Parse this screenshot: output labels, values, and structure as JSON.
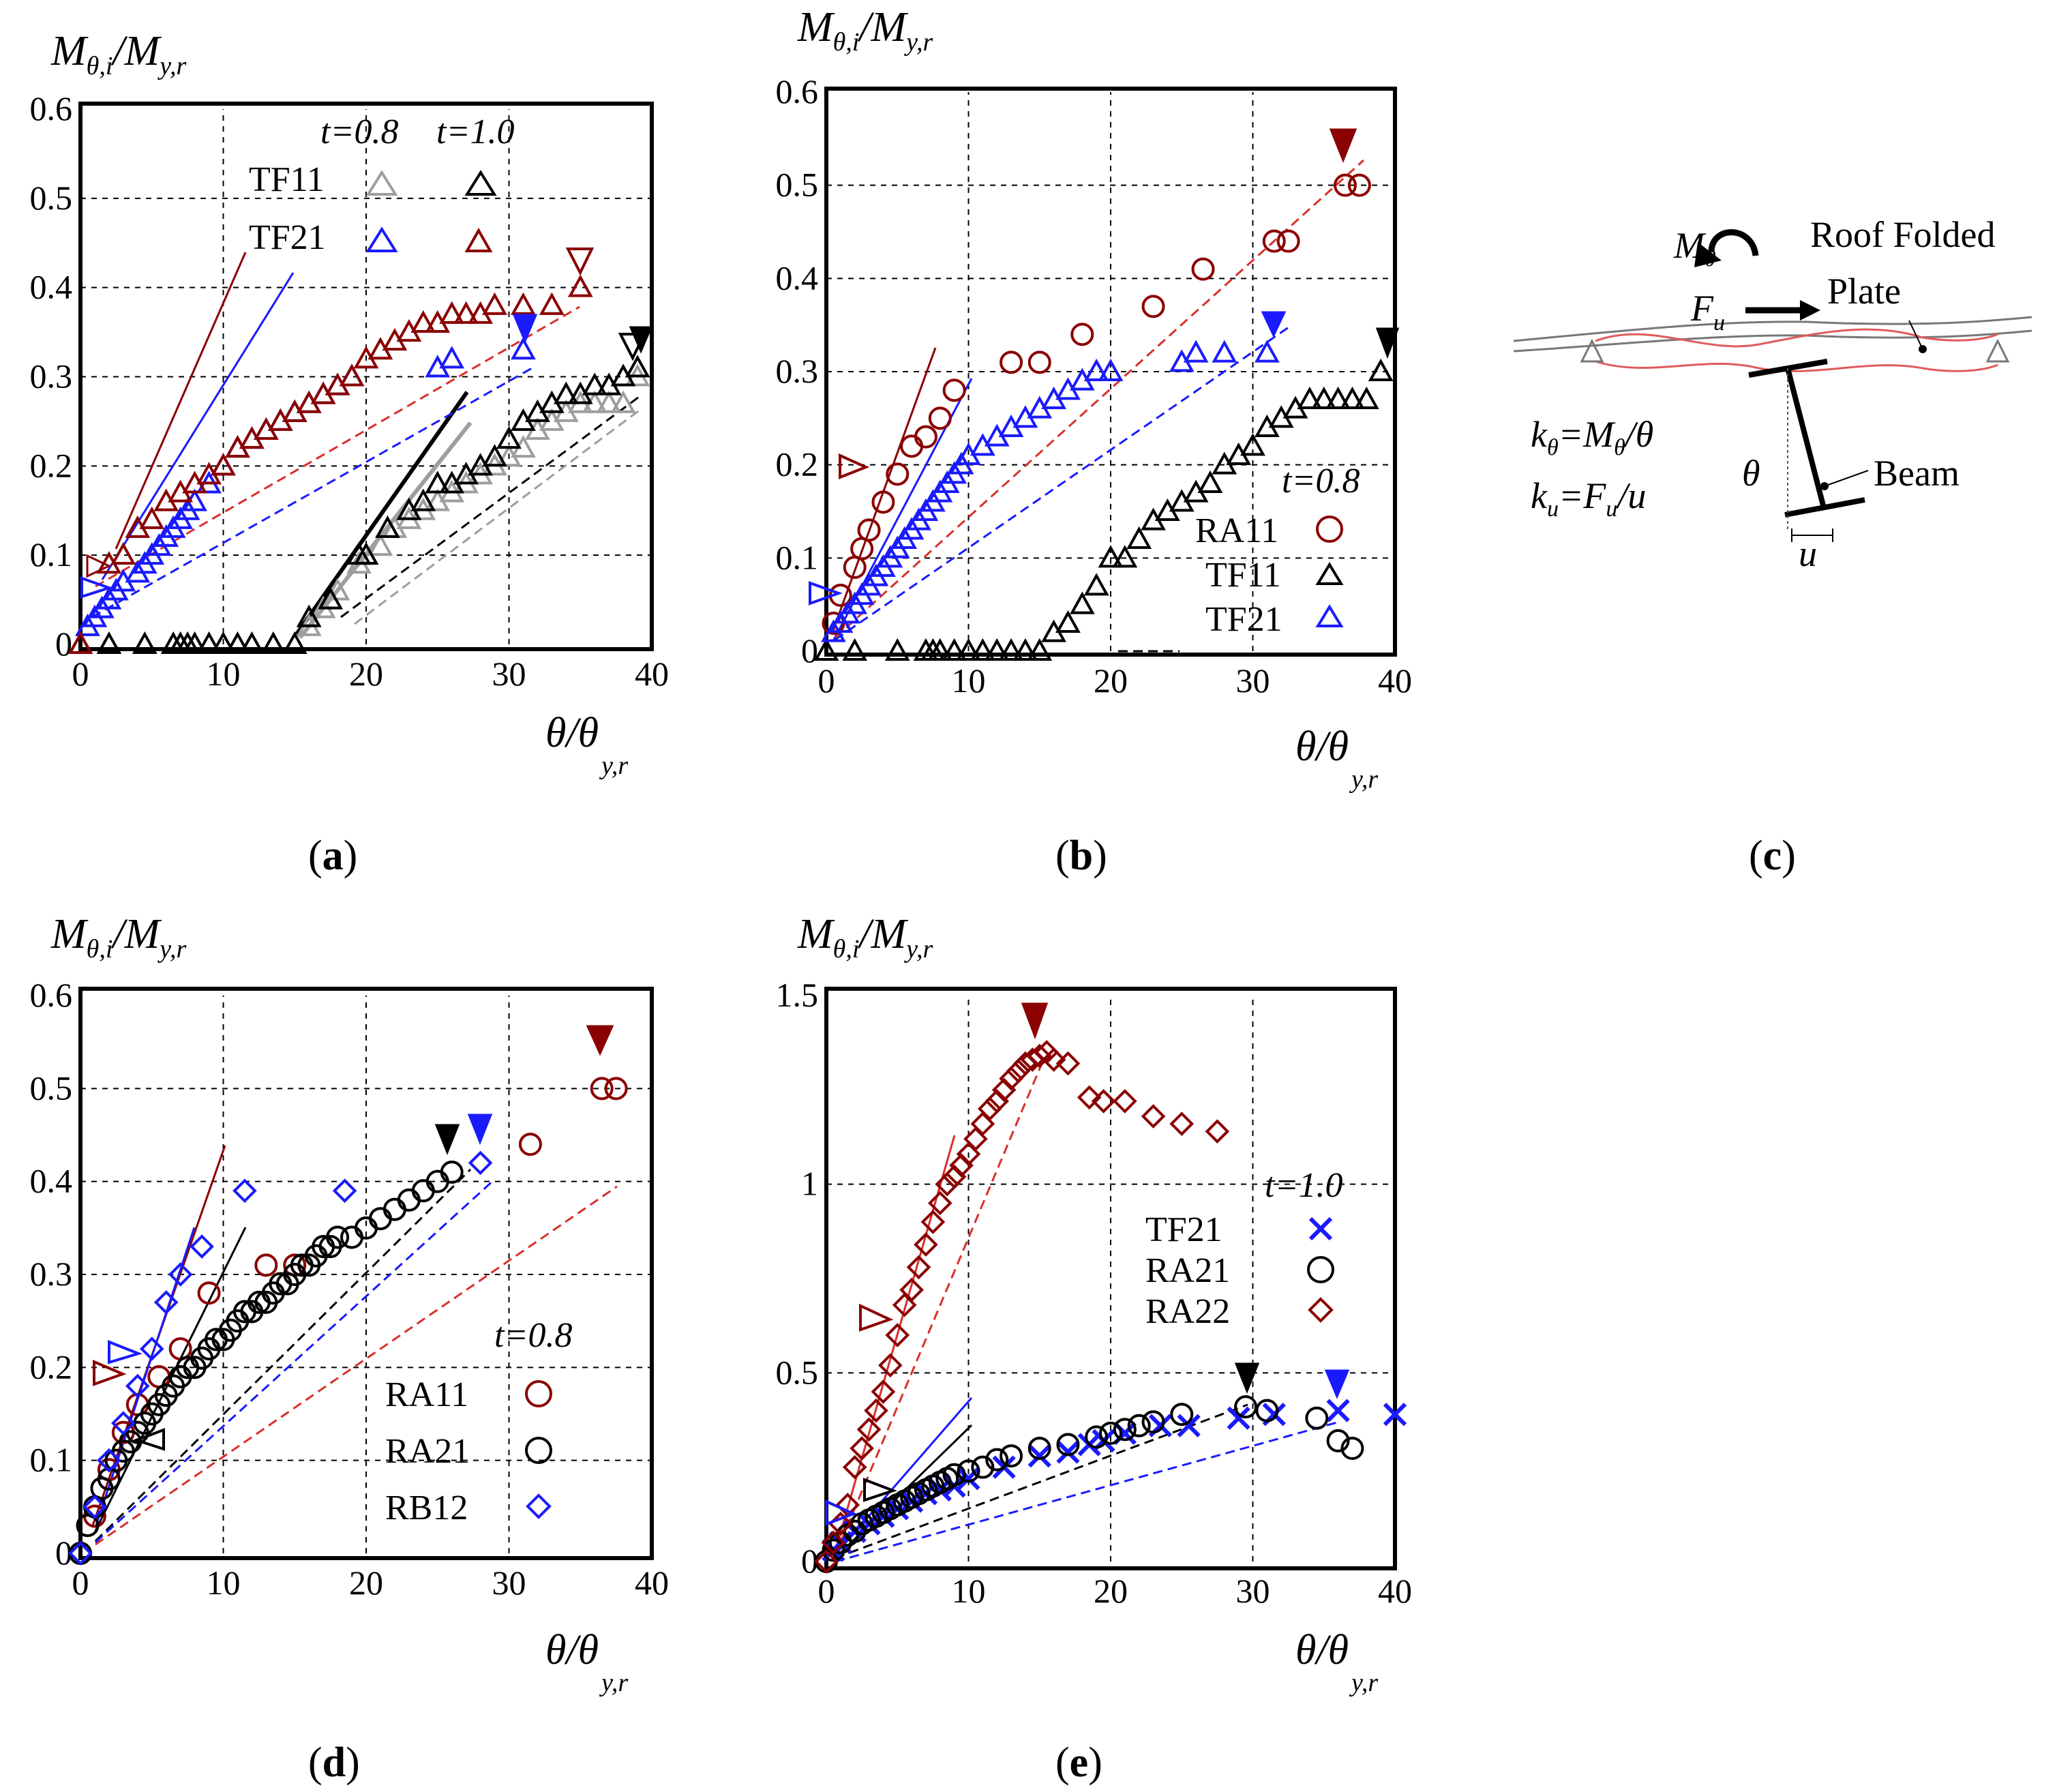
{
  "colors": {
    "gray": "#9e9e9e",
    "black": "#000000",
    "blue": "#1a1aff",
    "red": "#8b0000",
    "red2": "#d9302b"
  },
  "y_label": {
    "main": "M",
    "sub1": "θ,i",
    "slash": "/M",
    "sub2": "y,r"
  },
  "x_label": {
    "main": "θ/θ",
    "sub": "y,r"
  },
  "captions": {
    "a": "a",
    "b": "b",
    "c": "c",
    "d": "d",
    "e": "e"
  },
  "diagram": {
    "moment": "M",
    "moment_sub": "θ",
    "force": "F",
    "force_sub": "u",
    "roof": "Roof Folded",
    "plate": "Plate",
    "beam": "Beam",
    "theta": "θ",
    "u": "u",
    "eq1_k": "k",
    "eq1_ksub": "θ",
    "eq1_rest": "=M",
    "eq1_msub": "θ",
    "eq1_end": "/θ",
    "eq2_k": "k",
    "eq2_ksub": "u",
    "eq2_rest": "=F",
    "eq2_fsub": "u",
    "eq2_end": "/u"
  },
  "chart_data": [
    {
      "id": "a",
      "type": "scatter",
      "xlim": [
        0,
        40
      ],
      "ylim": [
        0,
        0.6
      ],
      "xticks": [
        "0",
        "10",
        "20",
        "30",
        "40"
      ],
      "yticks": [
        "0",
        "0.1",
        "0.2",
        "0.3",
        "0.4",
        "0.5",
        "0.6"
      ],
      "legend_header": {
        "t1": "t",
        "v1": "=0.8",
        "t2": "t",
        "v2": "=1.0"
      },
      "legend": [
        {
          "label": "TF11"
        },
        {
          "label": "TF21"
        }
      ],
      "series": [
        {
          "name": "TF11 t=0.8",
          "marker": "triangle",
          "color": "gray",
          "x": [
            16,
            17,
            18,
            19.5,
            20,
            21,
            22,
            23,
            24,
            25,
            26,
            27,
            28,
            29,
            30,
            31,
            32,
            33,
            34,
            35,
            36,
            37,
            38,
            39
          ],
          "y": [
            0.02,
            0.04,
            0.06,
            0.09,
            0.1,
            0.11,
            0.13,
            0.14,
            0.15,
            0.16,
            0.17,
            0.18,
            0.19,
            0.2,
            0.21,
            0.22,
            0.24,
            0.25,
            0.26,
            0.27,
            0.27,
            0.27,
            0.27,
            0.3
          ]
        },
        {
          "name": "TF11 t=1.0",
          "marker": "triangle",
          "color": "black",
          "x": [
            0,
            2,
            4.5,
            6.5,
            7,
            7.5,
            8,
            9,
            10,
            11,
            12,
            13.5,
            15,
            16,
            17.5,
            19.5,
            20,
            21.5,
            23,
            24,
            25,
            26,
            27,
            28,
            29,
            30,
            31,
            32,
            33,
            34,
            35,
            36,
            37,
            38,
            39
          ],
          "y": [
            0,
            0,
            0,
            0,
            0,
            0,
            0,
            0,
            0,
            0,
            0,
            0,
            0,
            0.03,
            0.05,
            0.1,
            0.1,
            0.13,
            0.15,
            0.16,
            0.18,
            0.18,
            0.19,
            0.2,
            0.21,
            0.23,
            0.25,
            0.26,
            0.27,
            0.28,
            0.28,
            0.29,
            0.29,
            0.3,
            0.31
          ]
        },
        {
          "name": "TF21 t=0.8",
          "marker": "triangle",
          "color": "blue",
          "x": [
            0.5,
            1,
            1.5,
            2,
            2.5,
            3,
            4,
            4.5,
            5,
            5.5,
            6,
            6.5,
            7,
            7.5,
            8,
            9,
            10,
            11,
            12,
            13,
            14,
            15,
            16,
            17,
            18,
            19,
            25,
            26,
            31
          ],
          "y": [
            0.02,
            0.03,
            0.04,
            0.05,
            0.06,
            0.07,
            0.08,
            0.09,
            0.1,
            0.11,
            0.12,
            0.13,
            0.14,
            0.15,
            0.16,
            0.18,
            0.2,
            0.22,
            0.23,
            0.24,
            0.25,
            0.26,
            0.27,
            0.28,
            0.29,
            0.3,
            0.31,
            0.32,
            0.33
          ]
        },
        {
          "name": "TF21 t=1.0",
          "marker": "triangle",
          "color": "red",
          "x": [
            0,
            2,
            3,
            4,
            5,
            6,
            7,
            8,
            9,
            10,
            11,
            12,
            13,
            14,
            15,
            16,
            17,
            18,
            19,
            20,
            21,
            22,
            23,
            24,
            25,
            26,
            27,
            28,
            29,
            31,
            33,
            35
          ],
          "y": [
            0,
            0.09,
            0.1,
            0.13,
            0.14,
            0.16,
            0.17,
            0.18,
            0.19,
            0.2,
            0.22,
            0.23,
            0.24,
            0.25,
            0.26,
            0.27,
            0.28,
            0.29,
            0.3,
            0.32,
            0.33,
            0.34,
            0.35,
            0.36,
            0.36,
            0.37,
            0.37,
            0.37,
            0.38,
            0.38,
            0.38,
            0.4
          ]
        }
      ]
    },
    {
      "id": "b",
      "type": "scatter",
      "xlim": [
        0,
        40
      ],
      "ylim": [
        0,
        0.6
      ],
      "xticks": [
        "0",
        "10",
        "20",
        "30",
        "40"
      ],
      "yticks": [
        "0",
        "0.1",
        "0.2",
        "0.3",
        "0.4",
        "0.5",
        "0.6"
      ],
      "legend_header": {
        "t1": "t",
        "v1": "=0.8"
      },
      "legend": [
        {
          "label": "RA11"
        },
        {
          "label": "TF11"
        },
        {
          "label": "TF21"
        }
      ],
      "series": [
        {
          "name": "RA11",
          "marker": "circle",
          "color": "red",
          "x": [
            0.5,
            1,
            2,
            2.5,
            3,
            4,
            5,
            6,
            7,
            8,
            9,
            13,
            15,
            18,
            23,
            26.5,
            31.5,
            32.5,
            36.5,
            37.5
          ],
          "y": [
            0.03,
            0.06,
            0.09,
            0.11,
            0.13,
            0.16,
            0.19,
            0.22,
            0.23,
            0.25,
            0.28,
            0.31,
            0.31,
            0.34,
            0.37,
            0.41,
            0.44,
            0.44,
            0.5,
            0.5
          ]
        },
        {
          "name": "TF11",
          "marker": "triangle",
          "color": "black",
          "x": [
            0,
            2,
            5,
            7,
            7.5,
            8,
            9,
            10,
            11,
            12,
            13,
            14,
            15,
            16,
            17,
            18,
            19,
            20,
            21,
            22,
            23,
            24,
            25,
            26,
            27,
            28,
            29,
            30,
            31,
            32,
            33,
            34,
            35,
            36,
            37,
            38,
            39
          ],
          "y": [
            0,
            0,
            0,
            0,
            0,
            0,
            0,
            0,
            0,
            0,
            0,
            0,
            0,
            0.02,
            0.03,
            0.05,
            0.07,
            0.1,
            0.1,
            0.12,
            0.14,
            0.15,
            0.16,
            0.17,
            0.18,
            0.2,
            0.21,
            0.22,
            0.24,
            0.25,
            0.26,
            0.27,
            0.27,
            0.27,
            0.27,
            0.27,
            0.3
          ]
        },
        {
          "name": "TF21",
          "marker": "triangle",
          "color": "blue",
          "x": [
            0.5,
            1,
            1.5,
            2,
            2.5,
            3,
            3.5,
            4,
            4.5,
            5,
            5.5,
            6,
            6.5,
            7,
            7.5,
            8,
            8.5,
            9,
            9.5,
            10,
            11,
            12,
            13,
            14,
            15,
            16,
            17,
            18,
            19,
            20,
            25,
            26,
            28,
            31
          ],
          "y": [
            0.02,
            0.03,
            0.04,
            0.05,
            0.06,
            0.07,
            0.08,
            0.09,
            0.1,
            0.11,
            0.12,
            0.13,
            0.14,
            0.15,
            0.16,
            0.17,
            0.18,
            0.19,
            0.2,
            0.21,
            0.22,
            0.23,
            0.24,
            0.25,
            0.26,
            0.27,
            0.28,
            0.29,
            0.3,
            0.3,
            0.31,
            0.32,
            0.32,
            0.32
          ]
        }
      ]
    },
    {
      "id": "d",
      "type": "scatter",
      "xlim": [
        0,
        40
      ],
      "ylim": [
        0,
        0.6
      ],
      "xticks": [
        "0",
        "10",
        "20",
        "30",
        "40"
      ],
      "yticks": [
        "0",
        "0.1",
        "0.2",
        "0.3",
        "0.4",
        "0.5",
        "0.6"
      ],
      "legend_header": {
        "t1": "t",
        "v1": "=0.8"
      },
      "legend": [
        {
          "label": "RA11"
        },
        {
          "label": "RA21"
        },
        {
          "label": "RB12"
        }
      ],
      "series": [
        {
          "name": "RA11",
          "marker": "circle",
          "color": "red",
          "x": [
            0,
            1,
            2,
            3,
            4,
            5.5,
            7,
            9,
            13,
            15,
            31.5,
            36.5,
            37.5
          ],
          "y": [
            0,
            0.04,
            0.09,
            0.13,
            0.16,
            0.19,
            0.22,
            0.28,
            0.31,
            0.31,
            0.44,
            0.5,
            0.5
          ]
        },
        {
          "name": "RA21",
          "marker": "circle",
          "color": "black",
          "x": [
            0,
            0.5,
            1,
            1.5,
            2,
            2.5,
            3,
            3.5,
            4,
            4.5,
            5,
            5.5,
            6,
            6.5,
            7,
            7.5,
            8,
            8.5,
            9,
            9.5,
            10,
            10.5,
            11,
            11.5,
            12,
            12.5,
            13,
            13.5,
            14,
            14.5,
            15,
            15.5,
            16,
            16.5,
            17,
            17.5,
            18,
            19,
            20,
            21,
            22,
            23,
            24,
            25,
            26
          ],
          "y": [
            0,
            0.03,
            0.05,
            0.07,
            0.08,
            0.1,
            0.11,
            0.12,
            0.13,
            0.14,
            0.15,
            0.16,
            0.17,
            0.18,
            0.19,
            0.2,
            0.2,
            0.21,
            0.22,
            0.23,
            0.23,
            0.24,
            0.25,
            0.26,
            0.26,
            0.27,
            0.27,
            0.28,
            0.29,
            0.29,
            0.3,
            0.31,
            0.31,
            0.32,
            0.33,
            0.33,
            0.34,
            0.34,
            0.35,
            0.36,
            0.37,
            0.38,
            0.39,
            0.4,
            0.41
          ]
        },
        {
          "name": "RB12",
          "marker": "diamond",
          "color": "blue",
          "x": [
            0,
            1,
            2,
            3,
            4,
            5,
            6,
            7,
            8.5,
            11.5,
            18.5,
            28
          ],
          "y": [
            0,
            0.05,
            0.1,
            0.14,
            0.18,
            0.22,
            0.27,
            0.3,
            0.33,
            0.39,
            0.39,
            0.42
          ]
        }
      ]
    },
    {
      "id": "e",
      "type": "scatter",
      "xlim": [
        0,
        40
      ],
      "ylim": [
        0,
        1.5
      ],
      "xticks": [
        "0",
        "10",
        "20",
        "30",
        "40"
      ],
      "yticks": [
        "0",
        "0.5",
        "1",
        "1.5"
      ],
      "legend_header": {
        "t1": "t",
        "v1": "=1.0"
      },
      "legend": [
        {
          "label": "TF21"
        },
        {
          "label": "RA21"
        },
        {
          "label": "RA22"
        }
      ],
      "series": [
        {
          "name": "TF21",
          "marker": "x",
          "color": "blue",
          "x": [
            0.5,
            1,
            2,
            3,
            4,
            5,
            6,
            7,
            8,
            9,
            10,
            12.5,
            15,
            17,
            18.5,
            19.5,
            21,
            23.5,
            25.5,
            29,
            31.5,
            36,
            40
          ],
          "y": [
            0.03,
            0.05,
            0.08,
            0.1,
            0.12,
            0.14,
            0.16,
            0.18,
            0.19,
            0.2,
            0.22,
            0.25,
            0.28,
            0.29,
            0.31,
            0.32,
            0.34,
            0.36,
            0.36,
            0.38,
            0.39,
            0.4,
            0.39
          ]
        },
        {
          "name": "RA21",
          "marker": "circle",
          "color": "black",
          "x": [
            0,
            0.5,
            1,
            1.5,
            2,
            2.5,
            3,
            3.5,
            4,
            4.5,
            5,
            5.5,
            6,
            6.5,
            7,
            7.5,
            8,
            8.5,
            9,
            10,
            11,
            12,
            13,
            15,
            17,
            19,
            20,
            21,
            22,
            23,
            25,
            29.5,
            31,
            34.5,
            36,
            37
          ],
          "y": [
            0,
            0.03,
            0.05,
            0.07,
            0.08,
            0.1,
            0.11,
            0.12,
            0.13,
            0.14,
            0.15,
            0.16,
            0.17,
            0.18,
            0.19,
            0.2,
            0.21,
            0.22,
            0.23,
            0.24,
            0.25,
            0.27,
            0.28,
            0.3,
            0.31,
            0.33,
            0.34,
            0.35,
            0.36,
            0.37,
            0.39,
            0.41,
            0.4,
            0.38,
            0.32,
            0.3
          ]
        },
        {
          "name": "RA22",
          "marker": "diamond",
          "color": "red",
          "x": [
            0,
            0.5,
            1,
            1.5,
            2,
            2.5,
            3,
            3.5,
            4,
            4.5,
            5,
            5.5,
            6,
            6.5,
            7,
            7.5,
            8,
            8.5,
            9,
            9.5,
            10,
            10.5,
            11,
            11.5,
            12,
            12.5,
            13,
            13.5,
            14,
            14.5,
            15,
            15.5,
            16,
            17,
            18.5,
            19.5,
            21,
            23,
            25,
            27.5
          ],
          "y": [
            0,
            0.05,
            0.1,
            0.15,
            0.25,
            0.3,
            0.35,
            0.4,
            0.45,
            0.52,
            0.6,
            0.68,
            0.72,
            0.78,
            0.84,
            0.9,
            0.95,
            1,
            1.02,
            1.05,
            1.08,
            1.12,
            1.16,
            1.2,
            1.22,
            1.25,
            1.28,
            1.3,
            1.32,
            1.33,
            1.34,
            1.35,
            1.33,
            1.32,
            1.23,
            1.22,
            1.22,
            1.18,
            1.16,
            1.14
          ]
        }
      ]
    }
  ]
}
